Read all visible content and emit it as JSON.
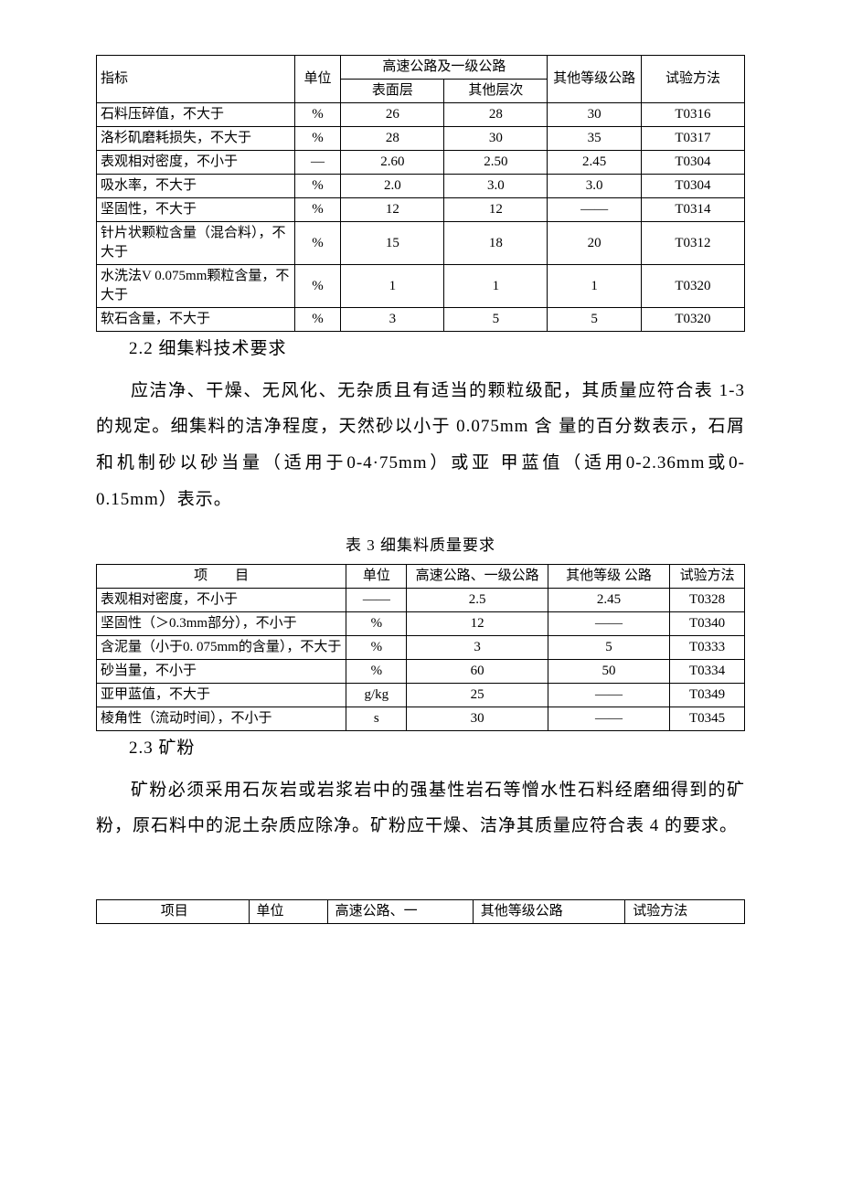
{
  "table1": {
    "header": {
      "indicator": "指标",
      "unit": "单位",
      "highway_group": "高速公路及一级公路",
      "surface": "表面层",
      "other_layer": "其他层次",
      "other_grade": "其他等级公路",
      "method": "试验方法"
    },
    "rows": [
      {
        "indicator": "石料压碎值，不大于",
        "unit": "%",
        "v1": "26",
        "v2": "28",
        "v3": "30",
        "method": "T0316"
      },
      {
        "indicator": "洛杉矶磨耗损失，不大于",
        "unit": "%",
        "v1": "28",
        "v2": "30",
        "v3": "35",
        "method": "T0317"
      },
      {
        "indicator": "表观相对密度，不小于",
        "unit": "—",
        "v1": "2.60",
        "v2": "2.50",
        "v3": "2.45",
        "method": "T0304"
      },
      {
        "indicator": "吸水率，不大于",
        "unit": "%",
        "v1": "2.0",
        "v2": "3.0",
        "v3": "3.0",
        "method": "T0304"
      },
      {
        "indicator": "坚固性，不大于",
        "unit": "%",
        "v1": "12",
        "v2": "12",
        "v3": "——",
        "method": "T0314"
      },
      {
        "indicator": "针片状颗粒含量（混合料），不大于",
        "unit": "%",
        "v1": "15",
        "v2": "18",
        "v3": "20",
        "method": "T0312"
      },
      {
        "indicator": "水洗法V 0.075mm颗粒含量，不大于",
        "unit": "%",
        "v1": "1",
        "v2": "1",
        "v3": "1",
        "method": "T0320"
      },
      {
        "indicator": "软石含量，不大于",
        "unit": "%",
        "v1": "3",
        "v2": "5",
        "v3": "5",
        "method": "T0320"
      }
    ]
  },
  "section22_heading": "2.2 细集料技术要求",
  "section22_body": "应洁净、干燥、无风化、无杂质且有适当的颗粒级配，其质量应符合表 1-3 的规定。细集料的洁净程度，天然砂以小于 0.075mm 含 量的百分数表示，石屑和机制砂以砂当量（适用于0-4·75mm）或亚 甲蓝值（适用0-2.36mm或0-0.15mm）表示。",
  "table3": {
    "caption": "表 3 细集料质量要求",
    "header": {
      "item": "项　　目",
      "unit": "单位",
      "highway": "高速公路、一级公路",
      "other": "其他等级 公路",
      "method": "试验方法"
    },
    "rows": [
      {
        "item": "表观相对密度，不小于",
        "unit": "——",
        "v1": "2.5",
        "v2": "2.45",
        "method": "T0328"
      },
      {
        "item": "坚固性（＞0.3mm部分），不小于",
        "unit": "%",
        "v1": "12",
        "v2": "——",
        "method": "T0340"
      },
      {
        "item": "含泥量（小于0. 075mm的含量），不大于",
        "unit": "%",
        "v1": "3",
        "v2": "5",
        "method": "T0333"
      },
      {
        "item": "砂当量，不小于",
        "unit": "%",
        "v1": "60",
        "v2": "50",
        "method": "T0334"
      },
      {
        "item": "亚甲蓝值，不大于",
        "unit": "g/kg",
        "v1": "25",
        "v2": "——",
        "method": "T0349"
      },
      {
        "item": "棱角性（流动时间），不小于",
        "unit": "s",
        "v1": "30",
        "v2": "——",
        "method": "T0345"
      }
    ]
  },
  "section23_heading": "2.3 矿粉",
  "section23_body": "矿粉必须采用石灰岩或岩浆岩中的强基性岩石等憎水性石料经磨细得到的矿粉，原石料中的泥土杂质应除净。矿粉应干燥、洁净其质量应符合表 4 的要求。",
  "table4": {
    "header": {
      "item": "项目",
      "unit": "单位",
      "highway": "高速公路、一",
      "other": "其他等级公路",
      "method": "试验方法"
    }
  }
}
